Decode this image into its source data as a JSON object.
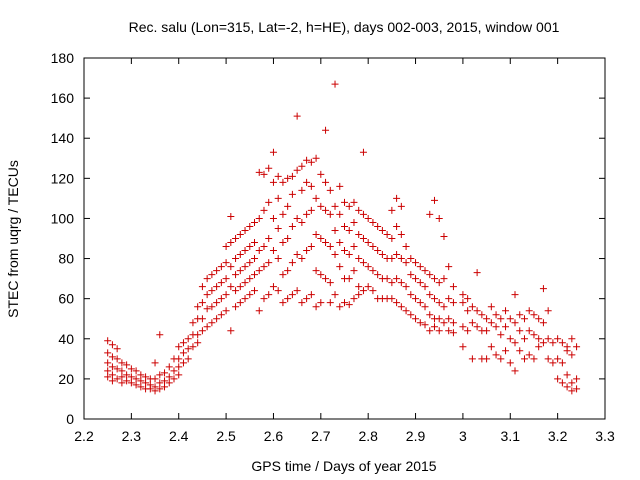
{
  "chart_data": {
    "type": "scatter",
    "title": "Rec. salu (Lon=315, Lat=-2, h=HE), days 002-003, 2015, window 001",
    "xlabel": "GPS time / Days of year 2015",
    "ylabel": "STEC from uqrg / TECUs",
    "xlim": [
      2.2,
      3.3
    ],
    "ylim": [
      0,
      180
    ],
    "xticks": [
      "2.2",
      "2.3",
      "2.4",
      "2.5",
      "2.6",
      "2.7",
      "2.8",
      "2.9",
      "3",
      "3.1",
      "3.2",
      "3.3"
    ],
    "yticks": [
      "0",
      "20",
      "40",
      "60",
      "80",
      "100",
      "120",
      "140",
      "160",
      "180"
    ],
    "grid": false,
    "marker": "plus",
    "color": "#cc0000",
    "points": [
      [
        2.25,
        39
      ],
      [
        2.25,
        33
      ],
      [
        2.25,
        28
      ],
      [
        2.25,
        24
      ],
      [
        2.25,
        21
      ],
      [
        2.26,
        37
      ],
      [
        2.26,
        31
      ],
      [
        2.26,
        26
      ],
      [
        2.26,
        22
      ],
      [
        2.26,
        19
      ],
      [
        2.27,
        35
      ],
      [
        2.27,
        30
      ],
      [
        2.27,
        25
      ],
      [
        2.27,
        20
      ],
      [
        2.28,
        28
      ],
      [
        2.28,
        24
      ],
      [
        2.28,
        21
      ],
      [
        2.28,
        18
      ],
      [
        2.29,
        27
      ],
      [
        2.29,
        22
      ],
      [
        2.29,
        19
      ],
      [
        2.3,
        25
      ],
      [
        2.3,
        21
      ],
      [
        2.3,
        18
      ],
      [
        2.31,
        24
      ],
      [
        2.31,
        20
      ],
      [
        2.31,
        17
      ],
      [
        2.32,
        22
      ],
      [
        2.32,
        19
      ],
      [
        2.32,
        16
      ],
      [
        2.33,
        21
      ],
      [
        2.33,
        18
      ],
      [
        2.33,
        15
      ],
      [
        2.34,
        20
      ],
      [
        2.34,
        17
      ],
      [
        2.34,
        15
      ],
      [
        2.35,
        28
      ],
      [
        2.35,
        20
      ],
      [
        2.35,
        16
      ],
      [
        2.35,
        14
      ],
      [
        2.36,
        22
      ],
      [
        2.36,
        18
      ],
      [
        2.36,
        15
      ],
      [
        2.36,
        42
      ],
      [
        2.37,
        23
      ],
      [
        2.37,
        19
      ],
      [
        2.37,
        16
      ],
      [
        2.38,
        26
      ],
      [
        2.38,
        21
      ],
      [
        2.38,
        18
      ],
      [
        2.39,
        30
      ],
      [
        2.39,
        24
      ],
      [
        2.39,
        20
      ],
      [
        2.4,
        36
      ],
      [
        2.4,
        30
      ],
      [
        2.4,
        26
      ],
      [
        2.4,
        22
      ],
      [
        2.41,
        38
      ],
      [
        2.41,
        33
      ],
      [
        2.41,
        28
      ],
      [
        2.42,
        40
      ],
      [
        2.42,
        35
      ],
      [
        2.42,
        30
      ],
      [
        2.43,
        48
      ],
      [
        2.43,
        42
      ],
      [
        2.43,
        36
      ],
      [
        2.44,
        56
      ],
      [
        2.44,
        50
      ],
      [
        2.44,
        42
      ],
      [
        2.44,
        38
      ],
      [
        2.45,
        66
      ],
      [
        2.45,
        58
      ],
      [
        2.45,
        50
      ],
      [
        2.45,
        44
      ],
      [
        2.46,
        70
      ],
      [
        2.46,
        62
      ],
      [
        2.46,
        55
      ],
      [
        2.46,
        46
      ],
      [
        2.47,
        72
      ],
      [
        2.47,
        64
      ],
      [
        2.47,
        56
      ],
      [
        2.47,
        48
      ],
      [
        2.48,
        74
      ],
      [
        2.48,
        66
      ],
      [
        2.48,
        58
      ],
      [
        2.48,
        50
      ],
      [
        2.49,
        76
      ],
      [
        2.49,
        68
      ],
      [
        2.49,
        60
      ],
      [
        2.49,
        52
      ],
      [
        2.5,
        86
      ],
      [
        2.5,
        78
      ],
      [
        2.5,
        70
      ],
      [
        2.5,
        62
      ],
      [
        2.5,
        54
      ],
      [
        2.51,
        101
      ],
      [
        2.51,
        88
      ],
      [
        2.51,
        76
      ],
      [
        2.51,
        66
      ],
      [
        2.51,
        44
      ],
      [
        2.52,
        90
      ],
      [
        2.52,
        80
      ],
      [
        2.52,
        72
      ],
      [
        2.52,
        64
      ],
      [
        2.52,
        56
      ],
      [
        2.53,
        92
      ],
      [
        2.53,
        82
      ],
      [
        2.53,
        74
      ],
      [
        2.53,
        66
      ],
      [
        2.53,
        58
      ],
      [
        2.54,
        94
      ],
      [
        2.54,
        84
      ],
      [
        2.54,
        76
      ],
      [
        2.54,
        68
      ],
      [
        2.54,
        60
      ],
      [
        2.55,
        96
      ],
      [
        2.55,
        86
      ],
      [
        2.55,
        78
      ],
      [
        2.55,
        70
      ],
      [
        2.55,
        62
      ],
      [
        2.56,
        98
      ],
      [
        2.56,
        88
      ],
      [
        2.56,
        80
      ],
      [
        2.56,
        72
      ],
      [
        2.56,
        64
      ],
      [
        2.57,
        123
      ],
      [
        2.57,
        100
      ],
      [
        2.57,
        84
      ],
      [
        2.57,
        74
      ],
      [
        2.57,
        54
      ],
      [
        2.58,
        122
      ],
      [
        2.58,
        104
      ],
      [
        2.58,
        86
      ],
      [
        2.58,
        76
      ],
      [
        2.58,
        60
      ],
      [
        2.59,
        125
      ],
      [
        2.59,
        108
      ],
      [
        2.59,
        90
      ],
      [
        2.59,
        78
      ],
      [
        2.59,
        62
      ],
      [
        2.6,
        133
      ],
      [
        2.6,
        118
      ],
      [
        2.6,
        100
      ],
      [
        2.6,
        84
      ],
      [
        2.6,
        66
      ],
      [
        2.61,
        121
      ],
      [
        2.61,
        110
      ],
      [
        2.61,
        95
      ],
      [
        2.61,
        80
      ],
      [
        2.61,
        64
      ],
      [
        2.62,
        118
      ],
      [
        2.62,
        102
      ],
      [
        2.62,
        88
      ],
      [
        2.62,
        72
      ],
      [
        2.62,
        58
      ],
      [
        2.63,
        120
      ],
      [
        2.63,
        106
      ],
      [
        2.63,
        90
      ],
      [
        2.63,
        74
      ],
      [
        2.63,
        60
      ],
      [
        2.64,
        121
      ],
      [
        2.64,
        112
      ],
      [
        2.64,
        96
      ],
      [
        2.64,
        78
      ],
      [
        2.64,
        62
      ],
      [
        2.65,
        151
      ],
      [
        2.65,
        124
      ],
      [
        2.65,
        100
      ],
      [
        2.65,
        82
      ],
      [
        2.65,
        64
      ],
      [
        2.66,
        126
      ],
      [
        2.66,
        114
      ],
      [
        2.66,
        98
      ],
      [
        2.66,
        80
      ],
      [
        2.66,
        58
      ],
      [
        2.67,
        129
      ],
      [
        2.67,
        118
      ],
      [
        2.67,
        102
      ],
      [
        2.67,
        84
      ],
      [
        2.67,
        60
      ],
      [
        2.68,
        128
      ],
      [
        2.68,
        116
      ],
      [
        2.68,
        104
      ],
      [
        2.68,
        86
      ],
      [
        2.68,
        62
      ],
      [
        2.69,
        130
      ],
      [
        2.69,
        110
      ],
      [
        2.69,
        92
      ],
      [
        2.69,
        74
      ],
      [
        2.69,
        56
      ],
      [
        2.7,
        122
      ],
      [
        2.7,
        106
      ],
      [
        2.7,
        90
      ],
      [
        2.7,
        72
      ],
      [
        2.7,
        58
      ],
      [
        2.71,
        144
      ],
      [
        2.71,
        118
      ],
      [
        2.71,
        104
      ],
      [
        2.71,
        88
      ],
      [
        2.71,
        70
      ],
      [
        2.72,
        114
      ],
      [
        2.72,
        102
      ],
      [
        2.72,
        86
      ],
      [
        2.72,
        68
      ],
      [
        2.72,
        58
      ],
      [
        2.73,
        167
      ],
      [
        2.73,
        106
      ],
      [
        2.73,
        94
      ],
      [
        2.73,
        82
      ],
      [
        2.73,
        62
      ],
      [
        2.74,
        116
      ],
      [
        2.74,
        102
      ],
      [
        2.74,
        88
      ],
      [
        2.74,
        76
      ],
      [
        2.74,
        56
      ],
      [
        2.75,
        108
      ],
      [
        2.75,
        96
      ],
      [
        2.75,
        84
      ],
      [
        2.75,
        70
      ],
      [
        2.75,
        58
      ],
      [
        2.76,
        106
      ],
      [
        2.76,
        94
      ],
      [
        2.76,
        82
      ],
      [
        2.76,
        70
      ],
      [
        2.76,
        57
      ],
      [
        2.77,
        108
      ],
      [
        2.77,
        98
      ],
      [
        2.77,
        86
      ],
      [
        2.77,
        74
      ],
      [
        2.77,
        60
      ],
      [
        2.78,
        104
      ],
      [
        2.78,
        92
      ],
      [
        2.78,
        80
      ],
      [
        2.78,
        66
      ],
      [
        2.78,
        62
      ],
      [
        2.79,
        133
      ],
      [
        2.79,
        102
      ],
      [
        2.79,
        90
      ],
      [
        2.79,
        78
      ],
      [
        2.79,
        64
      ],
      [
        2.8,
        100
      ],
      [
        2.8,
        88
      ],
      [
        2.8,
        76
      ],
      [
        2.8,
        66
      ],
      [
        2.81,
        98
      ],
      [
        2.81,
        86
      ],
      [
        2.81,
        74
      ],
      [
        2.81,
        64
      ],
      [
        2.82,
        96
      ],
      [
        2.82,
        84
      ],
      [
        2.82,
        72
      ],
      [
        2.82,
        60
      ],
      [
        2.83,
        94
      ],
      [
        2.83,
        82
      ],
      [
        2.83,
        70
      ],
      [
        2.83,
        60
      ],
      [
        2.84,
        92
      ],
      [
        2.84,
        80
      ],
      [
        2.84,
        70
      ],
      [
        2.84,
        60
      ],
      [
        2.85,
        104
      ],
      [
        2.85,
        90
      ],
      [
        2.85,
        80
      ],
      [
        2.85,
        68
      ],
      [
        2.85,
        60
      ],
      [
        2.86,
        110
      ],
      [
        2.86,
        96
      ],
      [
        2.86,
        82
      ],
      [
        2.86,
        70
      ],
      [
        2.86,
        58
      ],
      [
        2.87,
        106
      ],
      [
        2.87,
        92
      ],
      [
        2.87,
        80
      ],
      [
        2.87,
        68
      ],
      [
        2.87,
        56
      ],
      [
        2.88,
        86
      ],
      [
        2.88,
        78
      ],
      [
        2.88,
        66
      ],
      [
        2.88,
        54
      ],
      [
        2.89,
        80
      ],
      [
        2.89,
        72
      ],
      [
        2.89,
        62
      ],
      [
        2.89,
        52
      ],
      [
        2.9,
        78
      ],
      [
        2.9,
        70
      ],
      [
        2.9,
        60
      ],
      [
        2.9,
        50
      ],
      [
        2.91,
        76
      ],
      [
        2.91,
        68
      ],
      [
        2.91,
        58
      ],
      [
        2.91,
        48
      ],
      [
        2.92,
        74
      ],
      [
        2.92,
        66
      ],
      [
        2.92,
        56
      ],
      [
        2.92,
        47
      ],
      [
        2.93,
        102
      ],
      [
        2.93,
        72
      ],
      [
        2.93,
        62
      ],
      [
        2.93,
        52
      ],
      [
        2.93,
        44
      ],
      [
        2.94,
        109
      ],
      [
        2.94,
        70
      ],
      [
        2.94,
        60
      ],
      [
        2.94,
        50
      ],
      [
        2.94,
        46
      ],
      [
        2.95,
        100
      ],
      [
        2.95,
        68
      ],
      [
        2.95,
        58
      ],
      [
        2.95,
        50
      ],
      [
        2.95,
        44
      ],
      [
        2.96,
        91
      ],
      [
        2.96,
        70
      ],
      [
        2.96,
        56
      ],
      [
        2.96,
        48
      ],
      [
        2.97,
        76
      ],
      [
        2.97,
        60
      ],
      [
        2.97,
        50
      ],
      [
        2.97,
        44
      ],
      [
        2.98,
        66
      ],
      [
        2.98,
        58
      ],
      [
        2.98,
        48
      ],
      [
        2.98,
        43
      ],
      [
        3.0,
        62
      ],
      [
        3.0,
        58
      ],
      [
        3.0,
        46
      ],
      [
        3.0,
        36
      ],
      [
        3.01,
        60
      ],
      [
        3.01,
        54
      ],
      [
        3.01,
        44
      ],
      [
        3.02,
        56
      ],
      [
        3.02,
        48
      ],
      [
        3.02,
        30
      ],
      [
        3.03,
        54
      ],
      [
        3.03,
        46
      ],
      [
        3.03,
        73
      ],
      [
        3.04,
        52
      ],
      [
        3.04,
        44
      ],
      [
        3.04,
        30
      ],
      [
        3.05,
        50
      ],
      [
        3.05,
        44
      ],
      [
        3.05,
        30
      ],
      [
        3.06,
        56
      ],
      [
        3.06,
        48
      ],
      [
        3.06,
        36
      ],
      [
        3.07,
        52
      ],
      [
        3.07,
        46
      ],
      [
        3.07,
        32
      ],
      [
        3.08,
        50
      ],
      [
        3.08,
        42
      ],
      [
        3.08,
        30
      ],
      [
        3.09,
        54
      ],
      [
        3.09,
        46
      ],
      [
        3.09,
        34
      ],
      [
        3.1,
        50
      ],
      [
        3.1,
        40
      ],
      [
        3.1,
        28
      ],
      [
        3.11,
        62
      ],
      [
        3.11,
        48
      ],
      [
        3.11,
        38
      ],
      [
        3.11,
        24
      ],
      [
        3.12,
        52
      ],
      [
        3.12,
        44
      ],
      [
        3.12,
        34
      ],
      [
        3.13,
        50
      ],
      [
        3.13,
        40
      ],
      [
        3.13,
        30
      ],
      [
        3.14,
        54
      ],
      [
        3.14,
        44
      ],
      [
        3.14,
        32
      ],
      [
        3.15,
        52
      ],
      [
        3.15,
        42
      ],
      [
        3.15,
        30
      ],
      [
        3.16,
        50
      ],
      [
        3.16,
        40
      ],
      [
        3.16,
        36
      ],
      [
        3.17,
        65
      ],
      [
        3.17,
        48
      ],
      [
        3.17,
        38
      ],
      [
        3.18,
        54
      ],
      [
        3.18,
        40
      ],
      [
        3.18,
        30
      ],
      [
        3.19,
        38
      ],
      [
        3.19,
        28
      ],
      [
        3.2,
        40
      ],
      [
        3.2,
        30
      ],
      [
        3.2,
        20
      ],
      [
        3.21,
        38
      ],
      [
        3.21,
        28
      ],
      [
        3.21,
        18
      ],
      [
        3.22,
        36
      ],
      [
        3.22,
        34
      ],
      [
        3.22,
        22
      ],
      [
        3.23,
        40
      ],
      [
        3.23,
        32
      ],
      [
        3.23,
        18
      ],
      [
        3.24,
        36
      ],
      [
        3.24,
        20
      ],
      [
        3.24,
        15
      ],
      [
        3.23,
        14
      ],
      [
        3.22,
        16
      ]
    ]
  }
}
